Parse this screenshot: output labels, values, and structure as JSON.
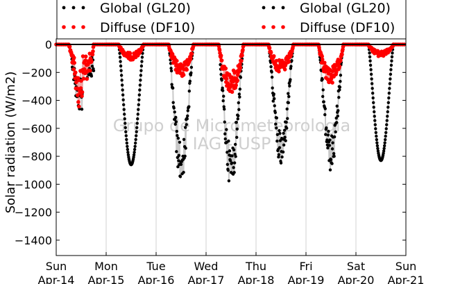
{
  "chart_data": {
    "type": "scatter",
    "title": "",
    "xlabel": "",
    "ylabel": "Solar radiation (W/m2)",
    "ylim": [
      -1500,
      0
    ],
    "yticks": [
      0,
      -200,
      -400,
      -600,
      -800,
      -1000,
      -1200,
      -1400
    ],
    "xlim": [
      0,
      7
    ],
    "xticks": [
      {
        "day": "Sun",
        "date": "Apr-14"
      },
      {
        "day": "Mon",
        "date": "Apr-15"
      },
      {
        "day": "Tue",
        "date": "Apr-16"
      },
      {
        "day": "Wed",
        "date": "Apr-17"
      },
      {
        "day": "Thu",
        "date": "Apr-18"
      },
      {
        "day": "Fri",
        "date": "Apr-19"
      },
      {
        "day": "Sat",
        "date": "Apr-20"
      },
      {
        "day": "Sun",
        "date": "Apr-21"
      }
    ],
    "grid": "vertical",
    "legend_placement": "top",
    "watermark": [
      "Grupo de Micrometeorologia",
      "IAG - USP"
    ],
    "series": [
      {
        "name": "Global (GL20)",
        "color": "#000000",
        "daily_peaks": [
          -520,
          -860,
          -940,
          -975,
          -845,
          -870,
          -830
        ]
      },
      {
        "name": "Diffuse (DF10)",
        "color": "#ff0000",
        "daily_peaks": [
          -340,
          -100,
          -210,
          -320,
          -190,
          -260,
          -80
        ]
      }
    ],
    "legends": [
      {
        "items": [
          "Global (GL20)",
          "Diffuse (DF10)"
        ]
      },
      {
        "items": [
          "Global (GL20)",
          "Diffuse (DF10)"
        ]
      }
    ]
  }
}
